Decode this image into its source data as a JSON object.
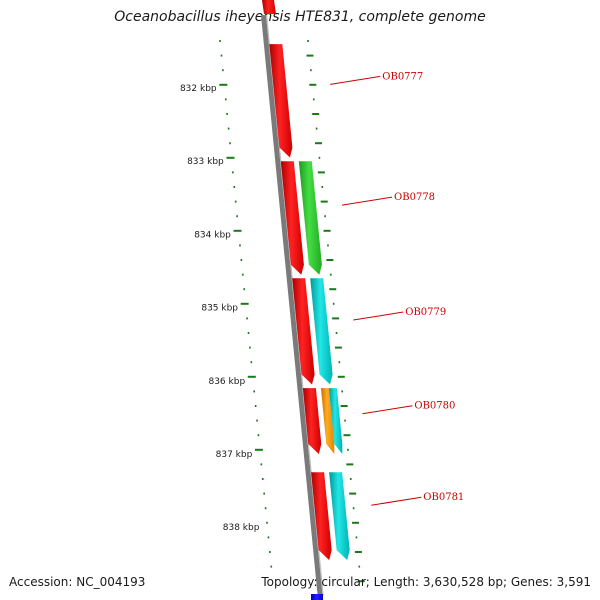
{
  "title": "Oceanobacillus iheyensis HTE831, complete genome",
  "footer": {
    "accession": "Accession: NC_004193",
    "stats": "Topology: circular; Length: 3,630,528 bp; Genes: 3,591"
  },
  "colors": {
    "backbone": "#7a7a7a",
    "tick": "#1a7a1a",
    "forward_cds": "#ff0000",
    "reverse_cds_a": "#33cc33",
    "reverse_cds_b": "#00cccc",
    "reverse_cds_c": "#ff9900",
    "other_feature": "#0000ff",
    "label": "#cc0000"
  },
  "scale": {
    "unit": "kbp",
    "labels": [
      "832 kbp",
      "833 kbp",
      "834 kbp",
      "835 kbp",
      "836 kbp",
      "837 kbp",
      "838 kbp"
    ]
  },
  "genes": [
    {
      "name": "OB0777",
      "start_kbp": 831.4,
      "end_kbp": 832.95,
      "strand": "+",
      "color": "#ff0000"
    },
    {
      "name": "OB0778",
      "start_kbp": 833.0,
      "end_kbp": 834.55,
      "strand": "+",
      "color": "#ff0000"
    },
    {
      "name": "OB0778",
      "start_kbp": 833.0,
      "end_kbp": 834.55,
      "strand": "-",
      "color": "#33cc33"
    },
    {
      "name": "OB0779",
      "start_kbp": 834.6,
      "end_kbp": 836.05,
      "strand": "+",
      "color": "#ff0000"
    },
    {
      "name": "OB0779",
      "start_kbp": 834.6,
      "end_kbp": 836.05,
      "strand": "-",
      "color": "#00cccc"
    },
    {
      "name": "OB0780",
      "start_kbp": 836.1,
      "end_kbp": 837.0,
      "strand": "+",
      "color": "#ff0000"
    },
    {
      "name": "OB0780",
      "start_kbp": 836.1,
      "end_kbp": 837.0,
      "strand": "-",
      "color": "#ff9900"
    },
    {
      "name": "OB0780",
      "start_kbp": 836.1,
      "end_kbp": 837.0,
      "strand": "-",
      "color": "#00cccc"
    },
    {
      "name": "OB0781",
      "start_kbp": 837.25,
      "end_kbp": 838.45,
      "strand": "+",
      "color": "#ff0000"
    },
    {
      "name": "OB0781",
      "start_kbp": 837.25,
      "end_kbp": 838.45,
      "strand": "-",
      "color": "#00cccc"
    }
  ],
  "gene_labels": [
    "OB0777",
    "OB0778",
    "OB0779",
    "OB0780",
    "OB0781"
  ]
}
